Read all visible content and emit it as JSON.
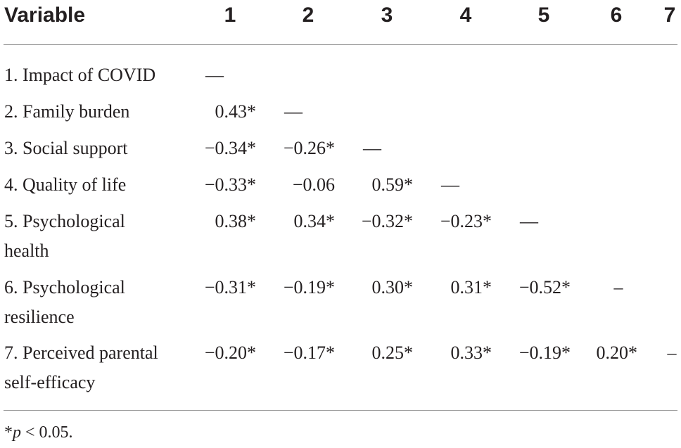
{
  "table": {
    "header": {
      "variable": "Variable",
      "columns": [
        "1",
        "2",
        "3",
        "4",
        "5",
        "6",
        "7"
      ]
    },
    "rows": [
      {
        "label_lines": [
          "1. Impact of COVID"
        ],
        "cells": [
          "—"
        ]
      },
      {
        "label_lines": [
          "2. Family burden"
        ],
        "cells": [
          "0.43*",
          "—"
        ]
      },
      {
        "label_lines": [
          "3. Social support"
        ],
        "cells": [
          "−0.34*",
          "−0.26*",
          "—"
        ]
      },
      {
        "label_lines": [
          "4. Quality of life"
        ],
        "cells": [
          "−0.33*",
          "−0.06",
          "0.59*",
          "—"
        ]
      },
      {
        "label_lines": [
          "5. Psychological",
          "health"
        ],
        "cells": [
          "0.38*",
          "0.34*",
          "−0.32*",
          "−0.23*",
          "—"
        ]
      },
      {
        "label_lines": [
          "6. Psychological",
          "resilience"
        ],
        "cells": [
          "−0.31*",
          "−0.19*",
          "0.30*",
          "0.31*",
          "−0.52*",
          "–"
        ]
      },
      {
        "label_lines": [
          "7. Perceived parental",
          "self-efficacy"
        ],
        "cells": [
          "−0.20*",
          "−0.17*",
          "0.25*",
          "0.33*",
          "−0.19*",
          "0.20*",
          "–"
        ]
      }
    ],
    "footnote": {
      "symbol": "*",
      "p_letter": "p",
      "text": " < 0.05."
    }
  }
}
